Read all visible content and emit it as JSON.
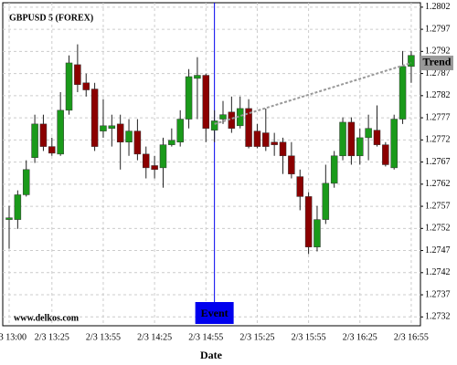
{
  "chart_data": {
    "type": "candlestick",
    "title": "GBPUSD 5 (FOREX)",
    "x_label": "Date",
    "watermark": "www.delkos.com",
    "categories": [
      "2/3 13:00",
      null,
      null,
      null,
      null,
      "2/3 13:25",
      null,
      null,
      null,
      null,
      null,
      "2/3 13:55",
      null,
      null,
      null,
      null,
      null,
      "2/3 14:25",
      null,
      null,
      null,
      null,
      null,
      "2/3 14:55",
      null,
      null,
      null,
      null,
      null,
      "2/3 15:25",
      null,
      null,
      null,
      null,
      null,
      "2/3 15:55",
      null,
      null,
      null,
      null,
      null,
      "2/3 16:25",
      null,
      null,
      null,
      null,
      null,
      "2/3 16:55"
    ],
    "open": [
      1.2754,
      1.2754,
      1.27596,
      1.2768,
      1.27756,
      1.27705,
      1.27688,
      1.27787,
      1.2789,
      1.27849,
      1.27835,
      1.2774,
      1.27746,
      1.27756,
      1.27715,
      1.2774,
      1.27688,
      1.27662,
      1.27657,
      1.27709,
      1.27715,
      1.27767,
      1.27859,
      1.27866,
      1.27742,
      1.27767,
      1.27783,
      1.27752,
      1.27791,
      1.2774,
      1.27736,
      1.27715,
      1.27715,
      1.27684,
      1.27637,
      1.27592,
      1.27478,
      1.2754,
      1.27622,
      1.27684,
      1.2776,
      1.27684,
      1.27725,
      1.27742,
      1.27709,
      1.27657,
      1.27767,
      1.27886
    ],
    "high": [
      1.27571,
      1.27606,
      1.27674,
      1.27777,
      1.27777,
      1.27725,
      1.27828,
      1.27911,
      1.27936,
      1.2787,
      1.27849,
      1.27812,
      1.27777,
      1.27777,
      1.27767,
      1.27767,
      1.27705,
      1.27684,
      1.27725,
      1.27746,
      1.27787,
      1.2788,
      1.27907,
      1.2787,
      1.27787,
      1.27808,
      1.27818,
      1.27818,
      1.27812,
      1.27756,
      1.27791,
      1.27736,
      1.27725,
      1.27715,
      1.27653,
      1.27602,
      1.27571,
      1.27664,
      1.27695,
      1.27771,
      1.27771,
      1.27746,
      1.27777,
      1.27798,
      1.27715,
      1.27777,
      1.27921,
      1.27921
    ],
    "low": [
      1.27474,
      1.27519,
      1.27592,
      1.27668,
      1.27695,
      1.27684,
      1.27684,
      1.27777,
      1.27828,
      1.27818,
      1.27695,
      1.27725,
      1.27705,
      1.27653,
      1.27684,
      1.27674,
      1.27633,
      1.27633,
      1.27612,
      1.27705,
      1.27705,
      1.27746,
      1.27767,
      1.27715,
      1.27715,
      1.27756,
      1.27736,
      1.27746,
      1.27701,
      1.27701,
      1.27695,
      1.27684,
      1.27643,
      1.27633,
      1.27561,
      1.27462,
      1.27468,
      1.2753,
      1.27612,
      1.27674,
      1.27664,
      1.27664,
      1.27674,
      1.27705,
      1.2766,
      1.27653,
      1.27756,
      1.27849
    ],
    "close": [
      1.27544,
      1.27596,
      1.27653,
      1.27756,
      1.27705,
      1.2769,
      1.27787,
      1.27894,
      1.27845,
      1.27833,
      1.27705,
      1.27752,
      1.27752,
      1.27715,
      1.2774,
      1.27688,
      1.27657,
      1.27653,
      1.27709,
      1.27719,
      1.27767,
      1.27863,
      1.27866,
      1.27746,
      1.27763,
      1.27777,
      1.27746,
      1.27791,
      1.27705,
      1.27705,
      1.27705,
      1.27709,
      1.27684,
      1.27643,
      1.27592,
      1.27478,
      1.2754,
      1.27622,
      1.27684,
      1.2776,
      1.27684,
      1.27725,
      1.27746,
      1.27709,
      1.27664,
      1.27767,
      1.27886,
      1.27911
    ],
    "up_color": "#1a9a1a",
    "down_color": "#8b0000",
    "ylim": [
      1.273,
      1.2803
    ],
    "yticks": [
      1.2732,
      1.2737,
      1.2742,
      1.2747,
      1.2752,
      1.2757,
      1.2762,
      1.2767,
      1.2772,
      1.2777,
      1.2782,
      1.2787,
      1.2792,
      1.2797,
      1.2802
    ],
    "grid": true,
    "event": {
      "label": "Event",
      "index": 24,
      "color": "#0000ee"
    },
    "trend": {
      "label": "Trend",
      "start": [
        24,
        1.27756
      ],
      "end": [
        47,
        1.27894
      ],
      "color": "#999999"
    }
  }
}
